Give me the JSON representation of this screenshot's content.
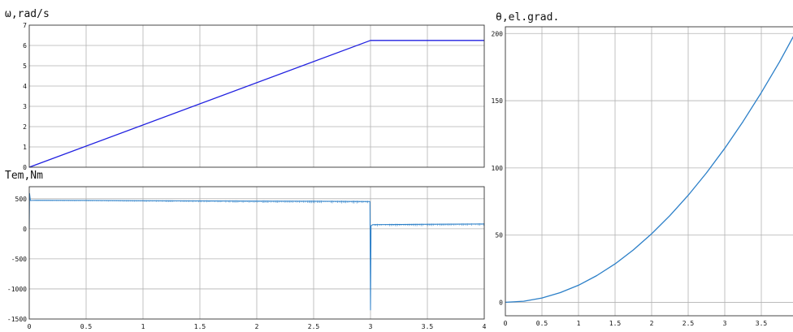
{
  "chart_data": [
    {
      "type": "line",
      "title": "ω,rad/s",
      "xlabel": "",
      "ylabel": "",
      "xlim": [
        0,
        4
      ],
      "ylim": [
        0,
        7
      ],
      "grid": true,
      "x_ticks": [
        "0",
        "0.5",
        "1",
        "1.5",
        "2",
        "2.5",
        "3",
        "3.5",
        "4"
      ],
      "y_ticks": [
        "0",
        "1",
        "2",
        "3",
        "4",
        "5",
        "6",
        "7"
      ],
      "color": "#2020e0",
      "series": [
        {
          "x": [
            0,
            3,
            4
          ],
          "y": [
            0,
            6.25,
            6.25
          ]
        }
      ]
    },
    {
      "type": "line",
      "title": "Tem,Nm",
      "xlabel": "",
      "ylabel": "",
      "xlim": [
        0,
        4
      ],
      "ylim": [
        -1500,
        700
      ],
      "grid": true,
      "x_ticks": [
        "0",
        "0.5",
        "1",
        "1.5",
        "2",
        "2.5",
        "3",
        "3.5",
        "4"
      ],
      "y_ticks": [
        "-1500",
        "-1000",
        "-500",
        "0",
        "500"
      ],
      "color": "#2b7fc8",
      "series": [
        {
          "x": [
            0,
            0.003,
            0.01,
            0.05,
            0.5,
            1,
            1.5,
            2,
            2.5,
            2.99,
            2.995,
            3.0,
            3.005,
            3.02,
            3.5,
            4
          ],
          "y": [
            0,
            590,
            470,
            475,
            472,
            468,
            464,
            460,
            458,
            455,
            455,
            -1350,
            50,
            70,
            75,
            80
          ]
        }
      ]
    },
    {
      "type": "line",
      "title": "θ,el.grad.",
      "xlabel": "",
      "ylabel": "",
      "xlim": [
        0,
        4
      ],
      "ylim": [
        -10,
        205
      ],
      "grid": true,
      "x_ticks": [
        "0",
        "0.5",
        "1",
        "1.5",
        "2",
        "2.5",
        "3",
        "3.5"
      ],
      "y_ticks": [
        "0",
        "50",
        "100",
        "150",
        "200"
      ],
      "color": "#2b7fc8",
      "series": [
        {
          "x": [
            0,
            0.25,
            0.5,
            0.75,
            1,
            1.25,
            1.5,
            1.75,
            2,
            2.25,
            2.5,
            2.75,
            3,
            3.25,
            3.5,
            3.75,
            4
          ],
          "y": [
            0,
            0.8,
            3.2,
            7.2,
            12.7,
            19.9,
            28.6,
            39,
            51,
            64.5,
            79.6,
            96.3,
            114.6,
            134.5,
            156,
            179,
            204
          ]
        }
      ]
    }
  ]
}
